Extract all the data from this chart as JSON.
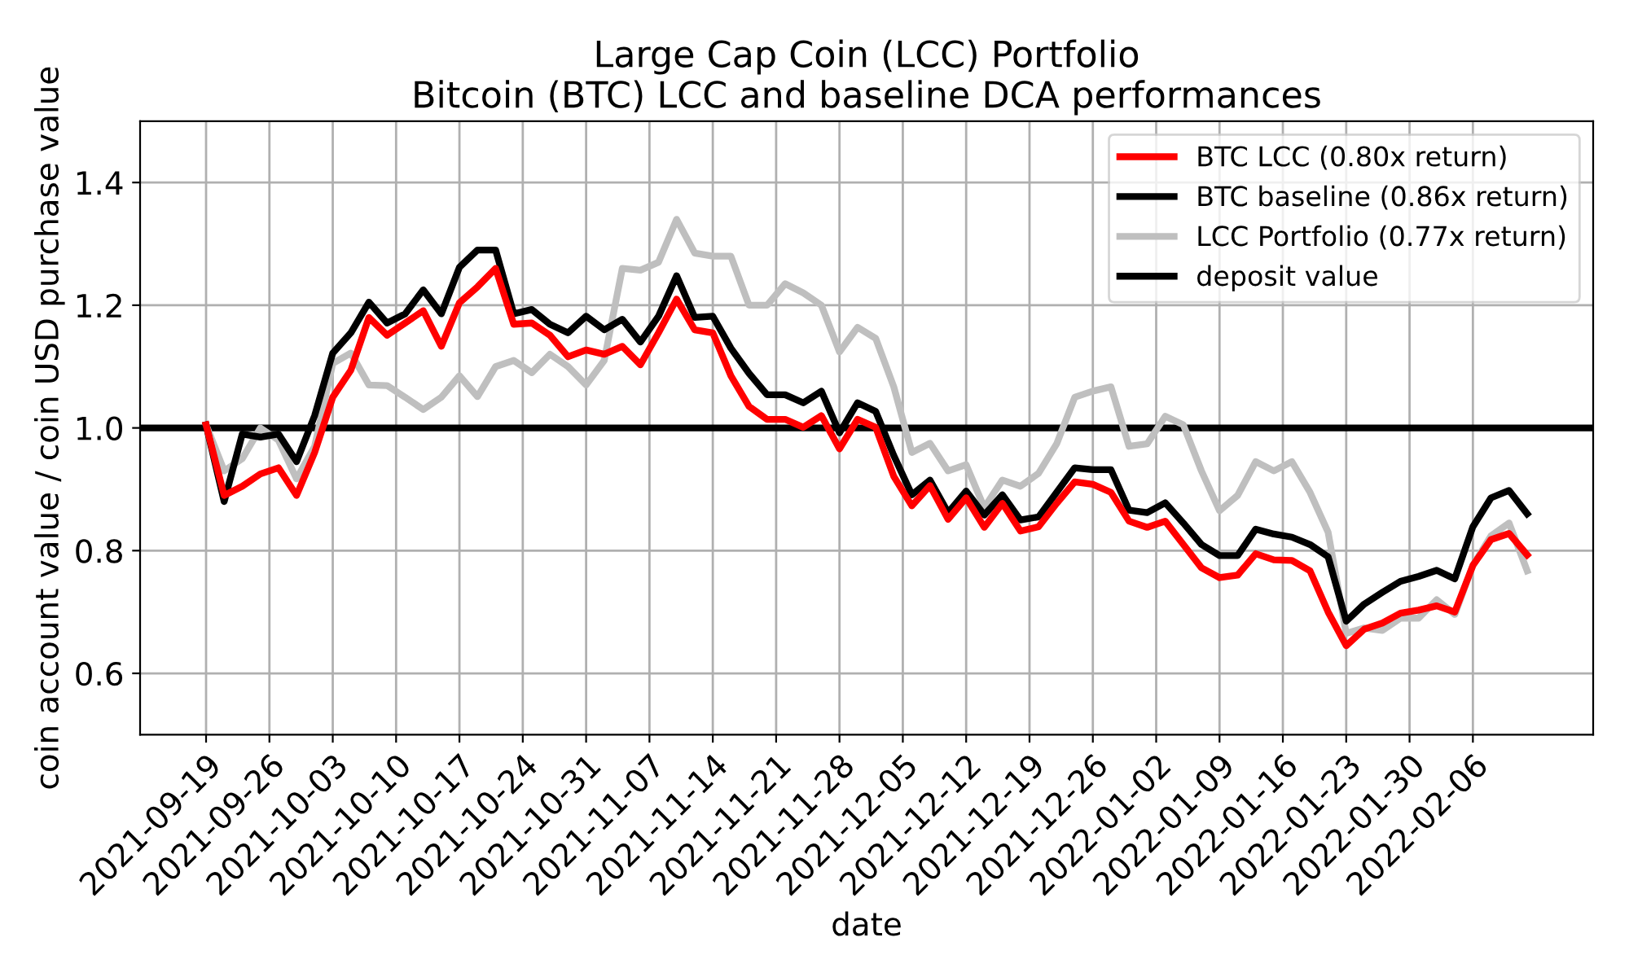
{
  "chart_data": {
    "type": "line",
    "title": "Large Cap Coin (LCC) Portfolio",
    "subtitle": "Bitcoin (BTC) LCC and baseline DCA performances",
    "xlabel": "date",
    "ylabel": "coin account value / coin USD purchase value",
    "x": [
      "2021-09-19",
      "2021-09-21",
      "2021-09-23",
      "2021-09-25",
      "2021-09-27",
      "2021-09-29",
      "2021-10-01",
      "2021-10-03",
      "2021-10-05",
      "2021-10-07",
      "2021-10-09",
      "2021-10-11",
      "2021-10-13",
      "2021-10-15",
      "2021-10-17",
      "2021-10-19",
      "2021-10-21",
      "2021-10-23",
      "2021-10-25",
      "2021-10-27",
      "2021-10-29",
      "2021-10-31",
      "2021-11-02",
      "2021-11-04",
      "2021-11-06",
      "2021-11-08",
      "2021-11-10",
      "2021-11-12",
      "2021-11-14",
      "2021-11-16",
      "2021-11-18",
      "2021-11-20",
      "2021-11-22",
      "2021-11-24",
      "2021-11-26",
      "2021-11-28",
      "2021-11-30",
      "2021-12-02",
      "2021-12-04",
      "2021-12-06",
      "2021-12-08",
      "2021-12-10",
      "2021-12-12",
      "2021-12-14",
      "2021-12-16",
      "2021-12-18",
      "2021-12-20",
      "2021-12-22",
      "2021-12-24",
      "2021-12-26",
      "2021-12-28",
      "2021-12-30",
      "2022-01-01",
      "2022-01-03",
      "2022-01-05",
      "2022-01-07",
      "2022-01-09",
      "2022-01-11",
      "2022-01-13",
      "2022-01-15",
      "2022-01-17",
      "2022-01-19",
      "2022-01-21",
      "2022-01-23",
      "2022-01-25",
      "2022-01-27",
      "2022-01-29",
      "2022-01-31",
      "2022-02-02",
      "2022-02-04",
      "2022-02-06",
      "2022-02-08",
      "2022-02-10",
      "2022-02-12"
    ],
    "series": [
      {
        "name": "BTC LCC (0.80x return)",
        "color": "#ff0000",
        "values": [
          1.005,
          0.89,
          0.905,
          0.925,
          0.935,
          0.89,
          0.96,
          1.05,
          1.094,
          1.18,
          1.151,
          1.171,
          1.191,
          1.133,
          1.204,
          1.23,
          1.26,
          1.169,
          1.171,
          1.151,
          1.116,
          1.127,
          1.12,
          1.133,
          1.103,
          1.155,
          1.21,
          1.16,
          1.155,
          1.085,
          1.035,
          1.014,
          1.014,
          1.001,
          1.02,
          0.966,
          1.014,
          1.001,
          0.921,
          0.873,
          0.906,
          0.851,
          0.886,
          0.838,
          0.877,
          0.832,
          0.839,
          0.877,
          0.912,
          0.908,
          0.895,
          0.848,
          0.838,
          0.848,
          0.81,
          0.772,
          0.756,
          0.76,
          0.795,
          0.785,
          0.784,
          0.767,
          0.7,
          0.645,
          0.672,
          0.682,
          0.698,
          0.703,
          0.71,
          0.7,
          0.776,
          0.818,
          0.828,
          0.793
        ]
      },
      {
        "name": "BTC baseline (0.86x return)",
        "color": "#000000",
        "values": [
          1.005,
          0.88,
          0.99,
          0.985,
          0.99,
          0.945,
          1.02,
          1.122,
          1.155,
          1.205,
          1.171,
          1.186,
          1.225,
          1.186,
          1.262,
          1.29,
          1.29,
          1.186,
          1.193,
          1.169,
          1.155,
          1.182,
          1.16,
          1.177,
          1.14,
          1.182,
          1.248,
          1.18,
          1.182,
          1.13,
          1.089,
          1.054,
          1.054,
          1.041,
          1.06,
          0.992,
          1.041,
          1.027,
          0.955,
          0.891,
          0.915,
          0.862,
          0.897,
          0.858,
          0.891,
          0.85,
          0.855,
          0.895,
          0.935,
          0.932,
          0.932,
          0.866,
          0.862,
          0.878,
          0.845,
          0.81,
          0.792,
          0.792,
          0.835,
          0.827,
          0.822,
          0.81,
          0.79,
          0.685,
          0.713,
          0.732,
          0.75,
          0.758,
          0.768,
          0.754,
          0.839,
          0.886,
          0.898,
          0.86
        ]
      },
      {
        "name": "LCC Portfolio (0.77x return)",
        "color": "#bfbfbf",
        "values": [
          1.005,
          0.93,
          0.95,
          1.0,
          0.98,
          0.917,
          0.97,
          1.105,
          1.122,
          1.07,
          1.069,
          1.05,
          1.03,
          1.05,
          1.085,
          1.051,
          1.1,
          1.11,
          1.09,
          1.12,
          1.1,
          1.07,
          1.11,
          1.26,
          1.257,
          1.27,
          1.34,
          1.285,
          1.28,
          1.28,
          1.2,
          1.2,
          1.235,
          1.22,
          1.2,
          1.124,
          1.164,
          1.146,
          1.067,
          0.96,
          0.975,
          0.93,
          0.94,
          0.87,
          0.915,
          0.905,
          0.926,
          0.974,
          1.05,
          1.06,
          1.067,
          0.97,
          0.974,
          1.019,
          1.005,
          0.93,
          0.865,
          0.89,
          0.945,
          0.93,
          0.945,
          0.895,
          0.83,
          0.665,
          0.674,
          0.67,
          0.69,
          0.69,
          0.72,
          0.696,
          0.776,
          0.824,
          0.845,
          0.767
        ]
      }
    ],
    "ref_lines": [
      {
        "axis": "y",
        "value": 1.0,
        "label": "deposit value",
        "color": "#000000",
        "line_style": "solid"
      }
    ],
    "xlim": [
      "2021-09-11T17:00",
      "2022-02-19T07:00"
    ],
    "xticks": [
      "2021-09-19",
      "2021-09-26",
      "2021-10-03",
      "2021-10-10",
      "2021-10-17",
      "2021-10-24",
      "2021-10-31",
      "2021-11-07",
      "2021-11-14",
      "2021-11-21",
      "2021-11-28",
      "2021-12-05",
      "2021-12-12",
      "2021-12-19",
      "2021-12-26",
      "2022-01-02",
      "2022-01-09",
      "2022-01-16",
      "2022-01-23",
      "2022-01-30",
      "2022-02-06"
    ],
    "ylim": [
      0.5,
      1.5
    ],
    "yticks": [
      0.6,
      0.8,
      {
        "value": 1,
        "label": "1.0"
      },
      1.2,
      1.4
    ],
    "grid": true,
    "legend": "top right",
    "marker": "none",
    "line_style": "solid"
  }
}
